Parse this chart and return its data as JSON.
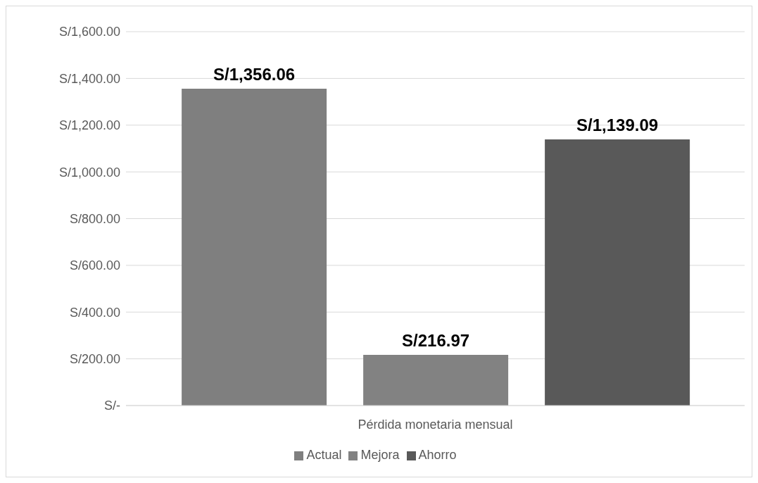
{
  "chart_data": {
    "type": "bar",
    "categories": [
      "Pérdida monetaria mensual"
    ],
    "series": [
      {
        "name": "Actual",
        "color": "#7f7f7f",
        "values": [
          1356.06
        ],
        "value_labels": [
          "S/1,356.06"
        ]
      },
      {
        "name": "Mejora",
        "color": "#828282",
        "values": [
          216.97
        ],
        "value_labels": [
          "S/216.97"
        ]
      },
      {
        "name": "Ahorro",
        "color": "#595959",
        "values": [
          1139.09
        ],
        "value_labels": [
          "S/1,139.09"
        ]
      }
    ],
    "ylim": [
      0,
      1600
    ],
    "yticks": [
      {
        "value": 0,
        "label": "S/-"
      },
      {
        "value": 200,
        "label": "S/200.00"
      },
      {
        "value": 400,
        "label": "S/400.00"
      },
      {
        "value": 600,
        "label": "S/600.00"
      },
      {
        "value": 800,
        "label": "S/800.00"
      },
      {
        "value": 1000,
        "label": "S/1,000.00"
      },
      {
        "value": 1200,
        "label": "S/1,200.00"
      },
      {
        "value": 1400,
        "label": "S/1,400.00"
      },
      {
        "value": 1600,
        "label": "S/1,600.00"
      }
    ],
    "grid": "y",
    "legend": "bottom"
  }
}
